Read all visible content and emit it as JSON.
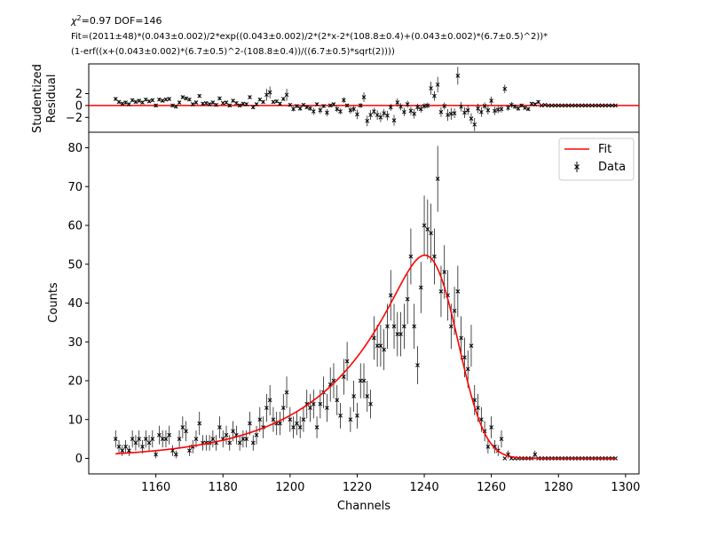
{
  "header": {
    "stats_prefix": "χ",
    "stats_sup": "2",
    "stats_rest": "=0.97   DOF=146",
    "fit_line1": "Fit=(2011±48)*(0.043±0.002)/2*exp((0.043±0.002)/2*(2*x-2*(108.8±0.4)+(0.043±0.002)*(6.7±0.5)^2))*",
    "fit_line2": "(1-erf((x+(0.043±0.002)*(6.7±0.5)^2-(108.8±0.4))/((6.7±0.5)*sqrt(2))))"
  },
  "colors": {
    "fit": "#ff0000",
    "data": "#000000",
    "zero_line": "#ff0000"
  },
  "chart_data": [
    {
      "type": "scatter",
      "panel": "residuals",
      "ylabel_line1": "Studentized",
      "ylabel_line2": "Residual",
      "ylim": [
        -4.5,
        7
      ],
      "xlim": [
        1140,
        1304
      ],
      "yticks": [
        -2,
        0,
        2
      ],
      "ytick_labels": [
        "−2",
        "0",
        "2"
      ],
      "zero_line": 0,
      "series": [
        {
          "x": [
            1148,
            1149,
            1150,
            1151,
            1152,
            1153,
            1154,
            1155,
            1156,
            1157,
            1158,
            1159,
            1160,
            1161,
            1162,
            1163,
            1164,
            1165,
            1166,
            1167,
            1168,
            1169,
            1170,
            1171,
            1172,
            1173,
            1174,
            1175,
            1176,
            1177,
            1178,
            1179,
            1180,
            1181,
            1182,
            1183,
            1184,
            1185,
            1186,
            1187,
            1188,
            1189,
            1190,
            1191,
            1192,
            1193,
            1194,
            1195,
            1196,
            1197,
            1198,
            1199,
            1200,
            1201,
            1202,
            1203,
            1204,
            1205,
            1206,
            1207,
            1208,
            1209,
            1210,
            1211,
            1212,
            1213,
            1214,
            1215,
            1216,
            1217,
            1218,
            1219,
            1220,
            1221,
            1222,
            1223,
            1224,
            1225,
            1226,
            1227,
            1228,
            1229,
            1230,
            1231,
            1232,
            1233,
            1234,
            1235,
            1236,
            1237,
            1238,
            1239,
            1240,
            1241,
            1242,
            1243,
            1244,
            1245,
            1246,
            1247,
            1248,
            1249,
            1250,
            1251,
            1252,
            1253,
            1254,
            1255,
            1256,
            1257,
            1258,
            1259,
            1260,
            1261,
            1262,
            1263,
            1264,
            1265,
            1266,
            1267,
            1268,
            1269,
            1270,
            1271,
            1272,
            1273,
            1274,
            1275,
            1276,
            1277,
            1278,
            1279,
            1280,
            1281,
            1282,
            1283,
            1284,
            1285,
            1286,
            1287,
            1288,
            1289,
            1290,
            1291,
            1292,
            1293,
            1294,
            1295,
            1296,
            1297
          ],
          "values": [
            1.1,
            0.6,
            0.3,
            0.5,
            0.2,
            0.9,
            0.6,
            0.8,
            0.5,
            1.0,
            0.7,
            0.9,
            0.0,
            1.0,
            0.8,
            1.0,
            1.1,
            0.0,
            -0.2,
            0.5,
            1.4,
            1.2,
            1.0,
            0.2,
            0.5,
            1.6,
            0.3,
            0.4,
            0.2,
            0.5,
            0.1,
            1.2,
            0.4,
            0.5,
            0.0,
            0.8,
            0.4,
            0.0,
            0.3,
            0.2,
            1.4,
            -0.3,
            0.2,
            1.0,
            0.6,
            1.8,
            2.2,
            0.6,
            0.7,
            0.3,
            1.1,
            1.8,
            0.1,
            -0.6,
            -0.1,
            -0.5,
            0.1,
            -0.3,
            -0.5,
            -1.0,
            0.2,
            -0.8,
            -0.1,
            -1.2,
            0.0,
            0.2,
            -0.6,
            -1.0,
            0.9,
            0.0,
            -0.8,
            -0.6,
            -1.5,
            0.0,
            1.4,
            -2.6,
            -1.6,
            -1.0,
            -1.6,
            -2.0,
            -1.3,
            -1.7,
            -0.3,
            -2.5,
            0.5,
            -0.2,
            -1.1,
            0.2,
            -0.9,
            -1.4,
            -0.3,
            -0.6,
            -0.1,
            0.0,
            2.9,
            1.6,
            3.5,
            -1.1,
            -0.1,
            -1.6,
            -1.4,
            -1.3,
            5.0,
            -0.2,
            -1.2,
            -0.8,
            -2.2,
            -3.2,
            -0.5,
            -1.1,
            -0.1,
            -0.8,
            0.8,
            -0.9,
            -0.7,
            -0.6,
            2.8,
            -0.4,
            0.1,
            -0.2,
            -0.5,
            0.0,
            -0.4,
            -0.6,
            0.3,
            0.2,
            0.6,
            0.0,
            0.1,
            0.0,
            0.0,
            0.0,
            0.0,
            0.0,
            0.0,
            0.0,
            0.0,
            0.0,
            0.0,
            0.0,
            0.0,
            0.0,
            0.0,
            0.0,
            0.0,
            0.0,
            0.0,
            0.0,
            0.0,
            0.0
          ],
          "errors": [
            0.3,
            0.3,
            0.3,
            0.3,
            0.3,
            0.3,
            0.3,
            0.3,
            0.3,
            0.3,
            0.3,
            0.3,
            0.3,
            0.3,
            0.3,
            0.3,
            0.3,
            0.3,
            0.3,
            0.3,
            0.3,
            0.3,
            0.3,
            0.3,
            0.3,
            0.3,
            0.3,
            0.3,
            0.3,
            0.3,
            0.3,
            0.3,
            0.3,
            0.3,
            0.3,
            0.3,
            0.3,
            0.3,
            0.3,
            0.3,
            0.3,
            0.3,
            0.3,
            0.3,
            0.3,
            1.0,
            1.0,
            0.3,
            0.3,
            0.3,
            0.3,
            1.0,
            0.3,
            0.4,
            0.3,
            0.4,
            0.3,
            0.3,
            0.4,
            0.6,
            0.3,
            0.6,
            0.3,
            0.6,
            0.3,
            0.3,
            0.5,
            0.5,
            0.5,
            0.3,
            0.6,
            0.5,
            0.8,
            0.4,
            0.8,
            0.9,
            0.8,
            0.6,
            0.8,
            0.8,
            0.7,
            0.8,
            0.6,
            0.9,
            0.7,
            0.6,
            0.7,
            0.6,
            0.7,
            0.8,
            0.6,
            0.6,
            0.5,
            0.5,
            1.1,
            0.8,
            1.3,
            0.8,
            0.6,
            1.0,
            1.0,
            0.8,
            1.5,
            0.8,
            0.9,
            0.8,
            0.9,
            1.1,
            0.8,
            0.8,
            0.6,
            0.7,
            0.7,
            0.7,
            0.6,
            0.6,
            0.7,
            0.5,
            0.5,
            0.4,
            0.4,
            0.3,
            0.3,
            0.3,
            0.3,
            0.3,
            0.3,
            0.1,
            0.1,
            0.1,
            0.1,
            0.1,
            0.1,
            0.1,
            0.1,
            0.1,
            0.1,
            0.1,
            0.1,
            0.1,
            0.1,
            0.1,
            0.1,
            0.1,
            0.1,
            0.1,
            0.1,
            0.1,
            0.1,
            0.1
          ]
        }
      ]
    },
    {
      "type": "scatter",
      "panel": "main",
      "xlabel": "Channels",
      "ylabel": "Counts",
      "xlim": [
        1140,
        1304
      ],
      "ylim": [
        -4,
        84
      ],
      "xticks": [
        1160,
        1180,
        1200,
        1220,
        1240,
        1260,
        1280,
        1300
      ],
      "xtick_labels": [
        "1160",
        "1180",
        "1200",
        "1220",
        "1240",
        "1260",
        "1280",
        "1300"
      ],
      "yticks": [
        0,
        10,
        20,
        30,
        40,
        50,
        60,
        70,
        80
      ],
      "ytick_labels": [
        "0",
        "10",
        "20",
        "30",
        "40",
        "50",
        "60",
        "70",
        "80"
      ],
      "legend": {
        "position": "top-right",
        "fit_label": "Fit",
        "data_label": "Data"
      },
      "fit_params": {
        "A": 2011,
        "lambda": 0.043,
        "mu": 108.8,
        "sigma": 6.7,
        "x_offset": 1140
      },
      "series": [
        {
          "name": "Data",
          "x": [
            1148,
            1149,
            1150,
            1151,
            1152,
            1153,
            1154,
            1155,
            1156,
            1157,
            1158,
            1159,
            1160,
            1161,
            1162,
            1163,
            1164,
            1165,
            1166,
            1167,
            1168,
            1169,
            1170,
            1171,
            1172,
            1173,
            1174,
            1175,
            1176,
            1177,
            1178,
            1179,
            1180,
            1181,
            1182,
            1183,
            1184,
            1185,
            1186,
            1187,
            1188,
            1189,
            1190,
            1191,
            1192,
            1193,
            1194,
            1195,
            1196,
            1197,
            1198,
            1199,
            1200,
            1201,
            1202,
            1203,
            1204,
            1205,
            1206,
            1207,
            1208,
            1209,
            1210,
            1211,
            1212,
            1213,
            1214,
            1215,
            1216,
            1217,
            1218,
            1219,
            1220,
            1221,
            1222,
            1223,
            1224,
            1225,
            1226,
            1227,
            1228,
            1229,
            1230,
            1231,
            1232,
            1233,
            1234,
            1235,
            1236,
            1237,
            1238,
            1239,
            1240,
            1241,
            1242,
            1243,
            1244,
            1245,
            1246,
            1247,
            1248,
            1249,
            1250,
            1251,
            1252,
            1253,
            1254,
            1255,
            1256,
            1257,
            1258,
            1259,
            1260,
            1261,
            1262,
            1263,
            1264,
            1265,
            1266,
            1267,
            1268,
            1269,
            1270,
            1271,
            1272,
            1273,
            1274,
            1275,
            1276,
            1277,
            1278,
            1279,
            1280,
            1281,
            1282,
            1283,
            1284,
            1285,
            1286,
            1287,
            1288,
            1289,
            1290,
            1291,
            1292,
            1293,
            1294,
            1295,
            1296,
            1297
          ],
          "values": [
            5,
            3,
            2,
            3,
            2,
            5,
            4,
            5,
            3,
            5,
            4,
            5,
            1,
            6,
            5,
            5,
            6,
            2,
            1,
            5,
            8,
            7,
            2,
            3,
            5,
            9,
            4,
            4,
            4,
            5,
            4,
            8,
            5,
            6,
            4,
            7,
            6,
            4,
            5,
            5,
            9,
            4,
            6,
            10,
            8,
            13,
            15,
            10,
            9,
            9,
            13,
            17,
            10,
            8,
            9,
            8,
            10,
            14,
            13,
            14,
            8,
            14,
            17,
            13,
            19,
            20,
            15,
            11,
            21,
            25,
            10,
            16,
            11,
            20,
            20,
            16,
            14,
            31,
            29,
            29,
            28,
            34,
            42,
            34,
            32,
            32,
            34,
            41,
            52,
            34,
            24,
            44,
            60,
            59,
            58,
            52,
            72,
            43,
            48,
            42,
            34,
            38,
            43,
            31,
            26,
            23,
            29,
            15,
            13,
            10,
            7,
            3,
            8,
            3,
            2,
            5,
            0,
            1,
            0,
            0,
            0,
            0,
            0,
            0,
            0,
            1,
            0,
            0,
            0,
            0,
            0,
            0,
            0,
            0,
            0,
            0,
            0,
            0,
            0,
            0,
            0,
            0,
            0,
            0,
            0,
            0,
            0,
            0,
            0,
            0
          ],
          "errors": [
            2.2,
            1.7,
            1.4,
            1.7,
            1.4,
            2.2,
            2.0,
            2.2,
            1.7,
            2.2,
            2.0,
            2.2,
            1.0,
            2.4,
            2.2,
            2.2,
            2.4,
            1.4,
            1.0,
            2.2,
            2.8,
            2.6,
            1.4,
            1.7,
            2.2,
            3.0,
            2.0,
            2.0,
            2.0,
            2.2,
            2.0,
            2.8,
            2.2,
            2.4,
            2.0,
            2.6,
            2.4,
            2.0,
            2.2,
            2.2,
            3.0,
            2.0,
            2.4,
            3.2,
            2.8,
            3.6,
            3.9,
            3.2,
            3.0,
            3.0,
            3.6,
            4.1,
            3.2,
            2.8,
            3.0,
            2.8,
            3.2,
            3.7,
            3.6,
            3.7,
            2.8,
            3.7,
            4.1,
            3.6,
            4.4,
            4.5,
            3.9,
            3.3,
            4.6,
            5.0,
            3.2,
            4.0,
            3.3,
            4.5,
            4.5,
            4.0,
            3.7,
            5.6,
            5.4,
            5.4,
            5.3,
            5.8,
            6.5,
            5.8,
            5.7,
            5.7,
            5.8,
            6.4,
            7.2,
            5.8,
            4.9,
            6.6,
            7.7,
            7.7,
            7.6,
            7.2,
            8.5,
            6.6,
            6.9,
            6.5,
            5.8,
            6.2,
            6.6,
            5.6,
            5.1,
            4.8,
            5.4,
            3.9,
            3.6,
            3.2,
            2.6,
            1.7,
            2.8,
            1.7,
            1.4,
            2.2,
            0.2,
            1.0,
            0.2,
            0.2,
            0.2,
            0.2,
            0.2,
            0.2,
            0.2,
            1.0,
            0.2,
            0.2,
            0.2,
            0.2,
            0.2,
            0.2,
            0.2,
            0.2,
            0.2,
            0.2,
            0.2,
            0.2,
            0.2,
            0.2,
            0.2,
            0.2,
            0.2,
            0.2,
            0.2,
            0.2,
            0.2,
            0.2,
            0.2,
            0.2
          ]
        }
      ]
    }
  ]
}
